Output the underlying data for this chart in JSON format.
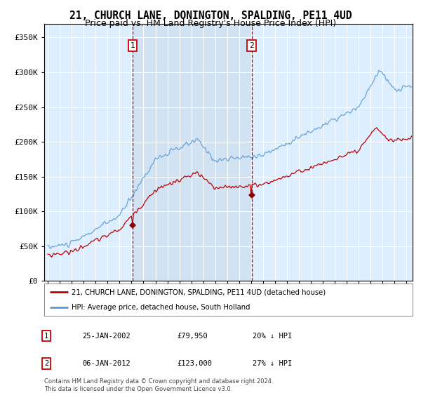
{
  "title": "21, CHURCH LANE, DONINGTON, SPALDING, PE11 4UD",
  "subtitle": "Price paid vs. HM Land Registry's House Price Index (HPI)",
  "title_fontsize": 10.5,
  "subtitle_fontsize": 9,
  "plot_bg_color": "#ddeeff",
  "highlight_color": "#c8ddf0",
  "grid_color": "#ffffff",
  "legend_entry1": "21, CHURCH LANE, DONINGTON, SPALDING, PE11 4UD (detached house)",
  "legend_entry2": "HPI: Average price, detached house, South Holland",
  "transaction1_date": 2002.08,
  "transaction1_price": 79950,
  "transaction2_date": 2012.04,
  "transaction2_price": 123000,
  "footer1": "Contains HM Land Registry data © Crown copyright and database right 2024.",
  "footer2": "This data is licensed under the Open Government Licence v3.0.",
  "table_row1": [
    "1",
    "25-JAN-2002",
    "£79,950",
    "20% ↓ HPI"
  ],
  "table_row2": [
    "2",
    "06-JAN-2012",
    "£123,000",
    "27% ↓ HPI"
  ],
  "hpi_color": "#5b9bd5",
  "price_color": "#c00000",
  "vline_color": "#cc0000",
  "marker_color": "#8b0000",
  "label_box_color": "#cc0000",
  "ylim": [
    0,
    370000
  ],
  "xlim_left": 1994.7,
  "xlim_right": 2025.5
}
